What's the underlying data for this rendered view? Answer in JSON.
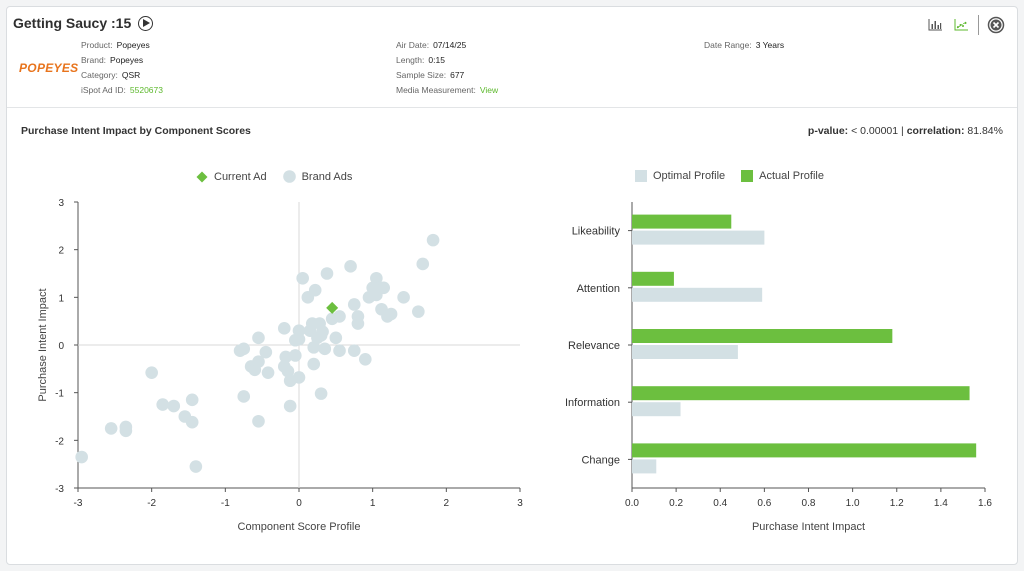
{
  "header": {
    "title": "Getting Saucy :15",
    "logo_text": "POPEYES",
    "col1": [
      {
        "label": "Product:",
        "value": "Popeyes"
      },
      {
        "label": "Brand:",
        "value": "Popeyes"
      },
      {
        "label": "Category:",
        "value": "QSR"
      },
      {
        "label": "iSpot Ad ID:",
        "value": "5520673",
        "link": true
      }
    ],
    "col2": [
      {
        "label": "Air Date:",
        "value": "07/14/25"
      },
      {
        "label": "Length:",
        "value": "0:15"
      },
      {
        "label": "Sample Size:",
        "value": "677"
      },
      {
        "label": "Media Measurement:",
        "value": "View",
        "link": true
      }
    ],
    "col3": [
      {
        "label": "Date Range:",
        "value": "3 Years"
      }
    ],
    "icons": [
      "bar-chart-icon",
      "scatter-chart-icon",
      "close-icon"
    ]
  },
  "section": {
    "title": "Purchase Intent Impact by Component Scores",
    "pvalue_label": "p-value:",
    "pvalue": "< 0.00001",
    "corr_label": "correlation:",
    "corr": "81.84%"
  },
  "colors": {
    "green": "#6cbf3f",
    "grey": "#d3e0e4"
  },
  "chart_data": [
    {
      "type": "scatter",
      "xlabel": "Component Score Profile",
      "ylabel": "Purchase Intent Impact",
      "xlim": [
        -3,
        3
      ],
      "ylim": [
        -3,
        3
      ],
      "xticks": [
        -3,
        -2,
        -1,
        0,
        1,
        2,
        3
      ],
      "yticks": [
        -3,
        -2,
        -1,
        0,
        1,
        2,
        3
      ],
      "legend": [
        "Current Ad",
        "Brand Ads"
      ],
      "current": {
        "name": "Current Ad",
        "x": 0.45,
        "y": 0.78
      },
      "series": [
        {
          "name": "Brand Ads",
          "points": [
            [
              -2.95,
              -2.35
            ],
            [
              -2.55,
              -1.75
            ],
            [
              -2.35,
              -1.72
            ],
            [
              -2.35,
              -1.8
            ],
            [
              -2.0,
              -0.58
            ],
            [
              -1.85,
              -1.25
            ],
            [
              -1.7,
              -1.28
            ],
            [
              -1.55,
              -1.5
            ],
            [
              -1.45,
              -1.62
            ],
            [
              -1.45,
              -1.15
            ],
            [
              -1.4,
              -2.55
            ],
            [
              -0.8,
              -0.12
            ],
            [
              -0.75,
              -0.08
            ],
            [
              -0.75,
              -1.08
            ],
            [
              -0.65,
              -0.45
            ],
            [
              -0.6,
              -0.52
            ],
            [
              -0.55,
              -0.35
            ],
            [
              -0.55,
              0.15
            ],
            [
              -0.55,
              -1.6
            ],
            [
              -0.45,
              -0.15
            ],
            [
              -0.42,
              -0.58
            ],
            [
              -0.2,
              0.35
            ],
            [
              -0.2,
              -0.45
            ],
            [
              -0.18,
              -0.25
            ],
            [
              -0.15,
              -0.55
            ],
            [
              -0.12,
              -0.75
            ],
            [
              -0.12,
              -1.28
            ],
            [
              -0.05,
              0.1
            ],
            [
              0.0,
              0.12
            ],
            [
              -0.05,
              -0.22
            ],
            [
              0.0,
              -0.68
            ],
            [
              0.05,
              1.4
            ],
            [
              0.12,
              1.0
            ],
            [
              0.15,
              0.3
            ],
            [
              0.18,
              0.45
            ],
            [
              0.2,
              -0.05
            ],
            [
              0.2,
              -0.4
            ],
            [
              0.22,
              1.15
            ],
            [
              0.25,
              0.15
            ],
            [
              0.28,
              0.45
            ],
            [
              0.3,
              -1.02
            ],
            [
              0.32,
              0.28
            ],
            [
              0.35,
              -0.08
            ],
            [
              0.38,
              1.5
            ],
            [
              0.45,
              0.55
            ],
            [
              0.5,
              0.15
            ],
            [
              0.55,
              0.6
            ],
            [
              0.55,
              -0.12
            ],
            [
              0.7,
              1.65
            ],
            [
              0.75,
              0.85
            ],
            [
              0.75,
              -0.12
            ],
            [
              0.8,
              0.6
            ],
            [
              0.8,
              0.45
            ],
            [
              0.9,
              -0.3
            ],
            [
              0.95,
              1.0
            ],
            [
              1.05,
              1.05
            ],
            [
              1.05,
              1.4
            ],
            [
              1.1,
              1.2
            ],
            [
              1.12,
              0.75
            ],
            [
              1.15,
              1.2
            ],
            [
              1.25,
              0.65
            ],
            [
              1.2,
              0.6
            ],
            [
              1.42,
              1.0
            ],
            [
              1.62,
              0.7
            ],
            [
              1.68,
              1.7
            ],
            [
              1.82,
              2.2
            ],
            [
              0.3,
              0.2
            ],
            [
              0.0,
              0.3
            ],
            [
              1.0,
              1.2
            ]
          ]
        }
      ]
    },
    {
      "type": "bar",
      "orientation": "horizontal",
      "xlabel": "Purchase Intent Impact",
      "xlim": [
        0,
        1.6
      ],
      "xticks": [
        0.0,
        0.2,
        0.4,
        0.6,
        0.8,
        1.0,
        1.2,
        1.4,
        1.6
      ],
      "categories": [
        "Likeability",
        "Attention",
        "Relevance",
        "Information",
        "Change"
      ],
      "legend": [
        "Optimal Profile",
        "Actual Profile"
      ],
      "series": [
        {
          "name": "Actual Profile",
          "values": [
            0.45,
            0.19,
            1.18,
            1.53,
            1.56
          ]
        },
        {
          "name": "Optimal Profile",
          "values": [
            0.6,
            0.59,
            0.48,
            0.22,
            0.11
          ]
        }
      ]
    }
  ]
}
